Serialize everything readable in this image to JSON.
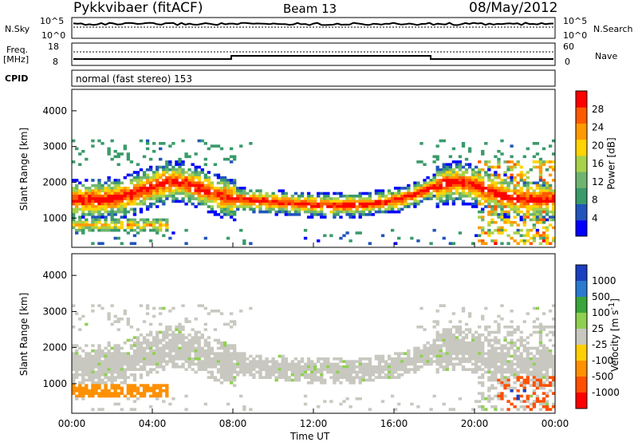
{
  "header": {
    "title": "Pykkvibaer (fitACF)",
    "beam": "Beam 13",
    "date": "08/May/2012"
  },
  "summary_panel": {
    "nsky_label": "N.Sky",
    "nsearch_label": "N.Search",
    "freq_label": "Freq.",
    "freq_unit": "[MHz]",
    "nave_label": "Nave",
    "cpid_label": "CPID",
    "cpid_text": "normal (fast stereo) 153",
    "noise_ticks": [
      "10^5",
      "10^0"
    ],
    "noise_ticks_right": [
      "10^5",
      "10^0"
    ],
    "freq_ticks": [
      "18",
      "8"
    ],
    "nave_ticks": [
      "60",
      "0"
    ]
  },
  "colors": {
    "power_scale": [
      "#0000ff",
      "#2255bb",
      "#3a9a6a",
      "#6fb56f",
      "#a8d24a",
      "#ffd400",
      "#ff9a00",
      "#ff5a00",
      "#ff0000"
    ],
    "velocity_scale": [
      "#1a3fc0",
      "#2a7ad0",
      "#3aa53a",
      "#8fd050",
      "#c8c8c0",
      "#ffd000",
      "#ff9000",
      "#ff5000",
      "#ff0000"
    ],
    "ground_scatter": "#c8c8c0"
  },
  "chart_data": [
    {
      "type": "heatmap",
      "title": "",
      "xlabel": "Time UT",
      "ylabel": "Slant Range [km]",
      "xlim": [
        "00:00",
        "00:00"
      ],
      "x_ticks": [
        "00:00",
        "04:00",
        "08:00",
        "12:00",
        "16:00",
        "20:00",
        "00:00"
      ],
      "ylim": [
        180,
        4600
      ],
      "y_ticks": [
        1000,
        2000,
        3000,
        4000
      ],
      "colorbar": {
        "label": "Power [dB]",
        "range": [
          0,
          32
        ],
        "ticks": [
          4,
          8,
          12,
          16,
          20,
          24,
          28
        ]
      },
      "features": [
        {
          "name": "main echo band",
          "time_range": [
            "00:00",
            "20:00"
          ],
          "center_km": [
            1500,
            2000,
            1300,
            1500,
            2000
          ],
          "peak_db": 26
        },
        {
          "name": "lower band",
          "time_range": [
            "00:00",
            "04:00"
          ],
          "center_km": 800,
          "peak_db": 24
        },
        {
          "name": "upper sparse",
          "time_range": [
            "00:00",
            "24:00"
          ],
          "range_km": [
            2500,
            3200
          ],
          "peak_db": 8
        }
      ]
    },
    {
      "type": "heatmap",
      "title": "",
      "xlabel": "Time UT",
      "ylabel": "Slant Range [km]",
      "xlim": [
        "00:00",
        "00:00"
      ],
      "x_ticks": [
        "00:00",
        "04:00",
        "08:00",
        "12:00",
        "16:00",
        "20:00",
        "00:00"
      ],
      "ylim": [
        180,
        4600
      ],
      "y_ticks": [
        1000,
        2000,
        3000,
        4000
      ],
      "colorbar": {
        "label": "Velocity [m s^-1]",
        "ticks": [
          "1000",
          "500",
          "100",
          "25",
          "-25",
          "-100",
          "-500",
          "-1000"
        ]
      },
      "features": [
        {
          "name": "ground scatter band",
          "time_range": [
            "00:00",
            "24:00"
          ],
          "velocity": "gray"
        },
        {
          "name": "receding echoes",
          "time_range": [
            "00:00",
            "04:40"
          ],
          "center_km": 800,
          "velocity_ms": -150
        }
      ]
    }
  ],
  "axis": {
    "xlabel": "Time UT",
    "ylabel": "Slant Range [km]",
    "power_label": "Power [dB]",
    "velocity_label": "Velocity [m s",
    "velocity_sup": "-1",
    "velocity_close": "]"
  }
}
